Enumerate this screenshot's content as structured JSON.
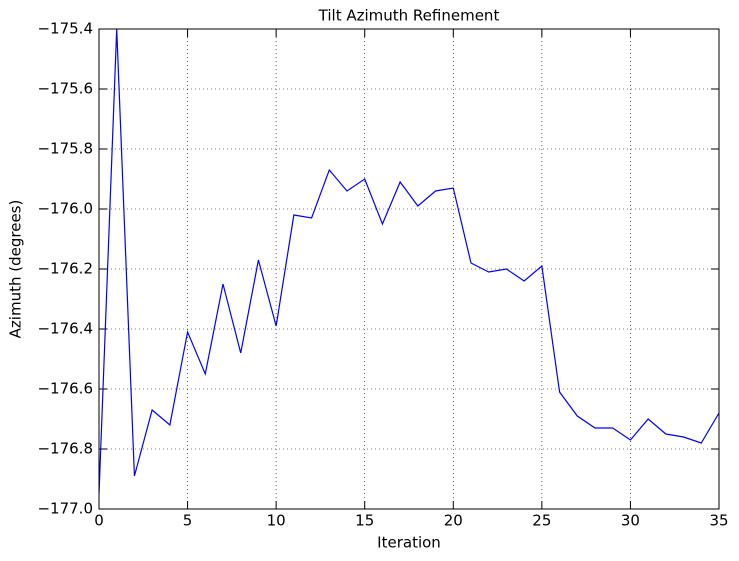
{
  "chart_data": {
    "type": "line",
    "title": "Tilt Azimuth Refinement",
    "x_label": "Iteration",
    "y_label": "Azimuth (degrees)",
    "x": [
      0,
      1,
      2,
      3,
      4,
      5,
      6,
      7,
      8,
      9,
      10,
      11,
      12,
      13,
      14,
      15,
      16,
      17,
      18,
      19,
      20,
      21,
      22,
      23,
      24,
      25,
      26,
      27,
      28,
      29,
      30,
      31,
      32,
      33,
      34,
      35
    ],
    "series": [
      {
        "name": "Azimuth",
        "color": "#0000ff",
        "values": [
          -176.95,
          -175.4,
          -176.89,
          -176.67,
          -176.72,
          -176.41,
          -176.55,
          -176.25,
          -176.48,
          -176.17,
          -176.39,
          -176.02,
          -176.03,
          -175.87,
          -175.94,
          -175.9,
          -176.05,
          -175.91,
          -175.99,
          -175.94,
          -175.93,
          -176.18,
          -176.21,
          -176.2,
          -176.24,
          -176.19,
          -176.61,
          -176.69,
          -176.73,
          -176.73,
          -176.77,
          -176.7,
          -176.75,
          -176.76,
          -176.78,
          -176.68
        ]
      }
    ],
    "xlim": [
      0,
      35
    ],
    "xticks": [
      0,
      5,
      10,
      15,
      20,
      25,
      30,
      35
    ],
    "ylim": [
      -177.0,
      -175.4
    ],
    "yticks": [
      {
        "value": -177.0,
        "label": "−177.0"
      },
      {
        "value": -176.8,
        "label": "−176.8"
      },
      {
        "value": -176.6,
        "label": "−176.6"
      },
      {
        "value": -176.4,
        "label": "−176.4"
      },
      {
        "value": -176.2,
        "label": "−176.2"
      },
      {
        "value": -176.0,
        "label": "−176.0"
      },
      {
        "value": -175.8,
        "label": "−175.8"
      },
      {
        "value": -175.6,
        "label": "−175.6"
      },
      {
        "value": -175.4,
        "label": "−175.4"
      }
    ],
    "grid": true
  }
}
